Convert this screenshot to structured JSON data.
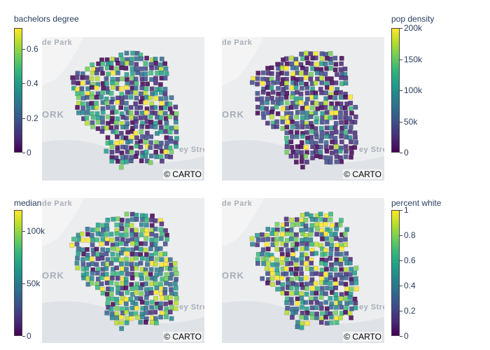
{
  "basemap": {
    "park_label": "de Park",
    "city_label": "ORK",
    "street_label": "ey Strea",
    "attribution": "© CARTO"
  },
  "panels": [
    {
      "id": "bachelors-degree",
      "colorbar": {
        "title": "bachelors degree",
        "ticks": [
          "0.6",
          "0.4",
          "0.2",
          "0"
        ],
        "tick_values": [
          0.6,
          0.4,
          0.2,
          0
        ],
        "range": [
          0,
          0.72
        ]
      },
      "distribution": {
        "low_share": 0.55,
        "mid_share": 0.35,
        "high_share": 0.1,
        "hot_region": "west"
      }
    },
    {
      "id": "pop-density",
      "colorbar": {
        "title": "pop density",
        "ticks": [
          "200k",
          "150k",
          "100k",
          "50k",
          "0"
        ],
        "tick_values": [
          200000,
          150000,
          100000,
          50000,
          0
        ],
        "range": [
          0,
          200000
        ]
      },
      "distribution": {
        "low_share": 0.92,
        "mid_share": 0.07,
        "high_share": 0.01,
        "hot_region": "center"
      }
    },
    {
      "id": "median-income",
      "colorbar": {
        "title": "median income",
        "ticks": [
          "100k",
          "50k",
          "0"
        ],
        "tick_values": [
          100000,
          50000,
          0
        ],
        "range": [
          0,
          120000
        ]
      },
      "distribution": {
        "low_share": 0.3,
        "mid_share": 0.5,
        "high_share": 0.2,
        "hot_region": "east"
      }
    },
    {
      "id": "percent-white",
      "colorbar": {
        "title": "percent white",
        "ticks": [
          "1",
          "0.8",
          "0.6",
          "0.4",
          "0.2",
          "0"
        ],
        "tick_values": [
          1,
          0.8,
          0.6,
          0.4,
          0.2,
          0
        ],
        "range": [
          0,
          1
        ]
      },
      "distribution": {
        "low_share": 0.4,
        "mid_share": 0.35,
        "high_share": 0.25,
        "hot_region": "north"
      }
    }
  ],
  "colorscale": [
    "#440154",
    "#482878",
    "#3e4989",
    "#31688e",
    "#26828e",
    "#1f9e89",
    "#35b779",
    "#6ece58",
    "#b5de2b",
    "#fde725"
  ]
}
